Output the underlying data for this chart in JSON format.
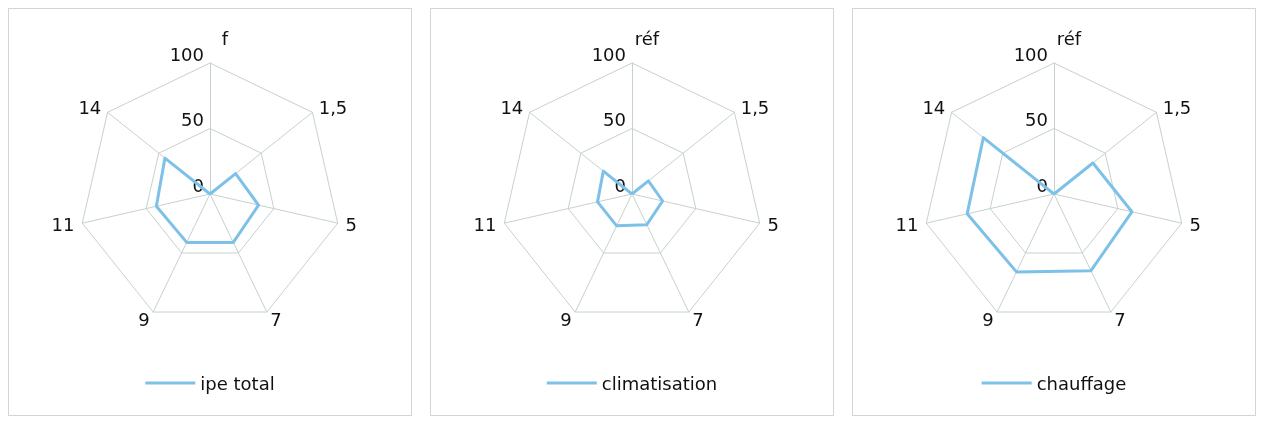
{
  "chart_data": [
    {
      "type": "radar",
      "categories": [
        "f",
        "1,5",
        "5",
        "7",
        "9",
        "11",
        "14"
      ],
      "series": [
        {
          "name": "ipe total",
          "color": "#7ec1e8",
          "values": [
            0,
            25,
            38,
            41,
            41,
            42,
            44
          ]
        }
      ],
      "ylim": [
        0,
        100
      ],
      "yticks": [
        0,
        50,
        100
      ],
      "grid": true,
      "legend": "bottom",
      "marker": "none"
    },
    {
      "type": "radar",
      "categories": [
        "réf",
        "1,5",
        "5",
        "7",
        "9",
        "11",
        "14"
      ],
      "series": [
        {
          "name": "climatisation",
          "color": "#7ec1e8",
          "values": [
            0,
            16,
            24,
            26,
            27,
            27,
            28
          ]
        }
      ],
      "ylim": [
        0,
        100
      ],
      "yticks": [
        0,
        50,
        100
      ],
      "grid": true,
      "legend": "bottom",
      "marker": "none"
    },
    {
      "type": "radar",
      "categories": [
        "réf",
        "1,5",
        "5",
        "7",
        "9",
        "11",
        "14"
      ],
      "series": [
        {
          "name": "chauffage",
          "color": "#7ec1e8",
          "values": [
            0,
            38,
            61,
            65,
            66,
            68,
            69
          ]
        }
      ],
      "ylim": [
        0,
        100
      ],
      "yticks": [
        0,
        50,
        100
      ],
      "grid": true,
      "legend": "bottom",
      "marker": "none"
    }
  ]
}
